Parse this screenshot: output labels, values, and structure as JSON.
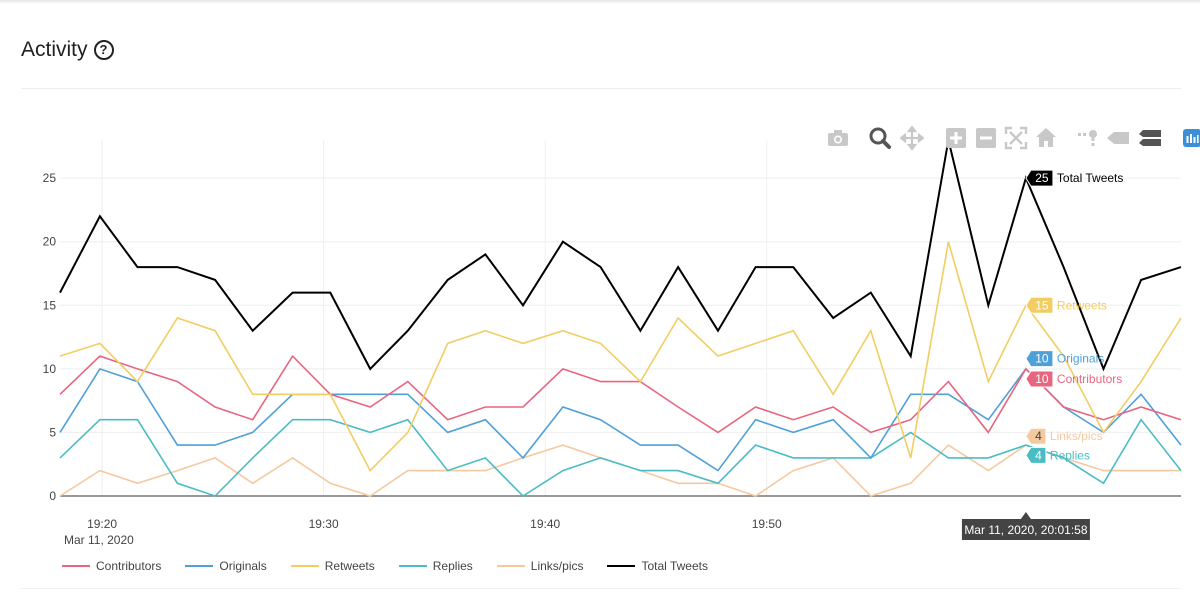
{
  "header": {
    "title": "Activity",
    "help_glyph": "?"
  },
  "modebar": {
    "buttons": [
      {
        "name": "camera-icon"
      },
      {
        "name": "zoom-icon"
      },
      {
        "name": "pan-icon"
      },
      {
        "name": "zoom-in-icon"
      },
      {
        "name": "zoom-out-icon"
      },
      {
        "name": "autoscale-icon"
      },
      {
        "name": "reset-axes-icon"
      },
      {
        "name": "spike-lines-icon"
      },
      {
        "name": "hover-closest-icon"
      },
      {
        "name": "hover-compare-icon"
      },
      {
        "name": "plotly-logo-icon"
      }
    ]
  },
  "chart_data": {
    "type": "line",
    "title": "Activity",
    "xlabel": "",
    "ylabel": "",
    "x_ticks": [
      "19:20",
      "19:30",
      "19:40",
      "19:50"
    ],
    "x_tick_minutes": [
      20,
      30,
      40,
      50
    ],
    "x_date_label": "Mar 11, 2020",
    "x_minutes": [
      18.1,
      19.9,
      21.6,
      23.4,
      25.1,
      26.8,
      28.6,
      30.3,
      32.1,
      33.8,
      35.6,
      37.3,
      39.0,
      40.8,
      42.5,
      44.3,
      46.0,
      47.8,
      49.5,
      51.2,
      53.0,
      54.7,
      56.5,
      58.2,
      60.0,
      61.7,
      63.4,
      65.2,
      66.9,
      68.7
    ],
    "xlim": [
      18.1,
      68.7
    ],
    "ylim": [
      0,
      28
    ],
    "y_ticks": [
      0,
      5,
      10,
      15,
      20,
      25
    ],
    "grid": true,
    "legend_position": "bottom-left",
    "series": [
      {
        "name": "Contributors",
        "color": "#e8657f",
        "values": [
          8,
          11,
          10,
          9,
          7,
          6,
          11,
          8,
          7,
          9,
          6,
          7,
          7,
          10,
          9,
          9,
          7,
          5,
          7,
          6,
          7,
          5,
          6,
          9,
          5,
          10,
          7,
          6,
          7,
          6
        ]
      },
      {
        "name": "Originals",
        "color": "#4fa0d9",
        "values": [
          5,
          10,
          9,
          4,
          4,
          5,
          8,
          8,
          8,
          8,
          5,
          6,
          3,
          7,
          6,
          4,
          4,
          2,
          6,
          5,
          6,
          3,
          8,
          8,
          6,
          10,
          7,
          5,
          8,
          4
        ]
      },
      {
        "name": "Retweets",
        "color": "#f2cd62",
        "values": [
          11,
          12,
          9,
          14,
          13,
          8,
          8,
          8,
          2,
          5,
          12,
          13,
          12,
          13,
          12,
          9,
          14,
          11,
          12,
          13,
          8,
          13,
          3,
          20,
          9,
          15,
          11,
          5,
          9,
          14
        ]
      },
      {
        "name": "Replies",
        "color": "#4bbcc4",
        "values": [
          3,
          6,
          6,
          1,
          0,
          3,
          6,
          6,
          5,
          6,
          2,
          3,
          0,
          2,
          3,
          2,
          2,
          1,
          4,
          3,
          3,
          3,
          5,
          3,
          3,
          4,
          3,
          1,
          6,
          2
        ]
      },
      {
        "name": "Links/pics",
        "color": "#f5c99f",
        "values": [
          0,
          2,
          1,
          2,
          3,
          1,
          3,
          1,
          0,
          2,
          2,
          2,
          3,
          4,
          3,
          2,
          1,
          1,
          0,
          2,
          3,
          0,
          1,
          4,
          2,
          4,
          3,
          2,
          2,
          2
        ]
      },
      {
        "name": "Total Tweets",
        "color": "#000000",
        "values": [
          16,
          22,
          18,
          18,
          17,
          13,
          16,
          16,
          10,
          13,
          17,
          19,
          15,
          20,
          18,
          13,
          18,
          13,
          18,
          18,
          14,
          16,
          11,
          28,
          15,
          25,
          18,
          10,
          17,
          18
        ]
      }
    ],
    "hover": {
      "x_minute": 61.7,
      "x_label": "Mar 11, 2020, 20:01:58",
      "labels": [
        {
          "series": "Total Tweets",
          "value": "25",
          "text": "Total Tweets"
        },
        {
          "series": "Retweets",
          "value": "15",
          "text": "Retweets"
        },
        {
          "series": "Originals",
          "value": "10",
          "text": "Originals"
        },
        {
          "series": "Contributors",
          "value": "10",
          "text": "Contributors"
        },
        {
          "series": "Links/pics",
          "value": "4",
          "text": "Links/pics"
        },
        {
          "series": "Replies",
          "value": "4",
          "text": "Replies"
        }
      ]
    }
  }
}
